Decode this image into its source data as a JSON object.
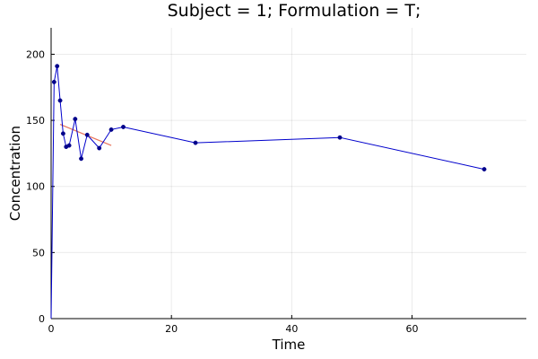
{
  "chart_data": {
    "type": "line",
    "title": "Subject = 1; Formulation = T;",
    "xlabel": "Time",
    "ylabel": "Concentration",
    "xlim": [
      0,
      79
    ],
    "ylim": [
      0,
      220
    ],
    "xticks": [
      0,
      20,
      40,
      60
    ],
    "yticks": [
      0,
      50,
      100,
      150,
      200
    ],
    "grid": true,
    "legend": "none",
    "series": [
      {
        "color": "#0000cc",
        "marker_color": "#00008b",
        "x": [
          0,
          0.5,
          1,
          1.5,
          2,
          2.5,
          3,
          4,
          5,
          6,
          8,
          10,
          12,
          24,
          48,
          72
        ],
        "y": [
          0,
          179,
          191,
          165,
          140,
          130,
          131,
          151,
          121,
          139,
          129,
          143,
          145,
          133,
          137,
          113
        ]
      }
    ],
    "fit_line": {
      "color": "#e8735a",
      "x": [
        1.5,
        10
      ],
      "y": [
        147,
        131
      ]
    }
  }
}
